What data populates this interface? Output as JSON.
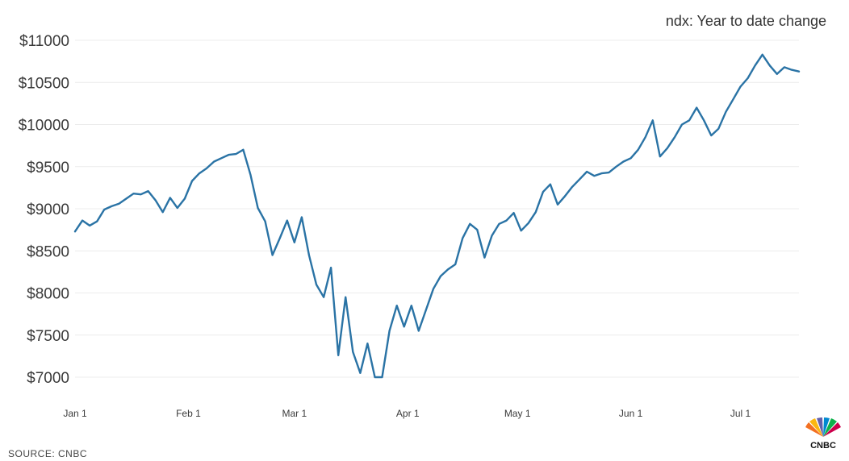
{
  "chart_data": {
    "type": "line",
    "title": "ndx: Year to date change",
    "source": "SOURCE: CNBC",
    "logo": "CNBC",
    "y_tick_labels": [
      "$11000",
      "$10500",
      "$10000",
      "$9500",
      "$9000",
      "$8500",
      "$8000",
      "$7500",
      "$7000"
    ],
    "y_ticks": [
      11000,
      10500,
      10000,
      9500,
      9000,
      8500,
      8000,
      7500,
      7000
    ],
    "x_tick_labels": [
      "Jan 1",
      "Feb 1",
      "Mar 1",
      "Apr 1",
      "May 1",
      "Jun 1",
      "Jul 1"
    ],
    "x_ticks": [
      "2020-01-01",
      "2020-02-01",
      "2020-03-01",
      "2020-04-01",
      "2020-05-01",
      "2020-06-01",
      "2020-07-01"
    ],
    "xlim": [
      "2020-01-01",
      "2020-07-17"
    ],
    "ylim": [
      6900,
      11100
    ],
    "grid": true,
    "line_color": "#2a73a5",
    "series": [
      {
        "x": [
          "2020-01-01",
          "2020-01-03",
          "2020-01-05",
          "2020-01-07",
          "2020-01-09",
          "2020-01-11",
          "2020-01-13",
          "2020-01-15",
          "2020-01-17",
          "2020-01-19",
          "2020-01-21",
          "2020-01-23",
          "2020-01-25",
          "2020-01-27",
          "2020-01-29",
          "2020-01-31",
          "2020-02-02",
          "2020-02-04",
          "2020-02-06",
          "2020-02-08",
          "2020-02-10",
          "2020-02-12",
          "2020-02-14",
          "2020-02-16",
          "2020-02-18",
          "2020-02-20",
          "2020-02-22",
          "2020-02-24",
          "2020-02-26",
          "2020-02-28",
          "2020-03-01",
          "2020-03-03",
          "2020-03-05",
          "2020-03-07",
          "2020-03-09",
          "2020-03-11",
          "2020-03-13",
          "2020-03-15",
          "2020-03-17",
          "2020-03-19",
          "2020-03-21",
          "2020-03-23",
          "2020-03-25",
          "2020-03-27",
          "2020-03-29",
          "2020-03-31",
          "2020-04-02",
          "2020-04-04",
          "2020-04-06",
          "2020-04-08",
          "2020-04-10",
          "2020-04-12",
          "2020-04-14",
          "2020-04-16",
          "2020-04-18",
          "2020-04-20",
          "2020-04-22",
          "2020-04-24",
          "2020-04-26",
          "2020-04-28",
          "2020-04-30",
          "2020-05-02",
          "2020-05-04",
          "2020-05-06",
          "2020-05-08",
          "2020-05-10",
          "2020-05-12",
          "2020-05-14",
          "2020-05-16",
          "2020-05-18",
          "2020-05-20",
          "2020-05-22",
          "2020-05-24",
          "2020-05-26",
          "2020-05-28",
          "2020-05-30",
          "2020-06-01",
          "2020-06-03",
          "2020-06-05",
          "2020-06-07",
          "2020-06-09",
          "2020-06-11",
          "2020-06-13",
          "2020-06-15",
          "2020-06-17",
          "2020-06-19",
          "2020-06-21",
          "2020-06-23",
          "2020-06-25",
          "2020-06-27",
          "2020-06-29",
          "2020-07-01",
          "2020-07-03",
          "2020-07-05",
          "2020-07-07",
          "2020-07-09",
          "2020-07-11",
          "2020-07-13",
          "2020-07-15",
          "2020-07-17"
        ],
        "values": [
          8730,
          8860,
          8800,
          8850,
          8990,
          9030,
          9060,
          9120,
          9180,
          9170,
          9210,
          9100,
          8960,
          9130,
          9010,
          9120,
          9330,
          9420,
          9480,
          9560,
          9600,
          9640,
          9650,
          9700,
          9400,
          9010,
          8850,
          8450,
          8650,
          8860,
          8600,
          8900,
          8450,
          8100,
          7950,
          8300,
          7260,
          7950,
          7300,
          7050,
          7400,
          7000,
          7000,
          7550,
          7850,
          7600,
          7850,
          7550,
          7800,
          8050,
          8200,
          8280,
          8340,
          8650,
          8820,
          8750,
          8420,
          8680,
          8820,
          8860,
          8950,
          8740,
          8830,
          8960,
          9200,
          9290,
          9050,
          9150,
          9260,
          9350,
          9440,
          9390,
          9420,
          9430,
          9500,
          9560,
          9600,
          9700,
          9850,
          10050,
          9620,
          9720,
          9850,
          10000,
          10050,
          10200,
          10050,
          9870,
          9950,
          10150,
          10300,
          10450,
          10550,
          10700,
          10830,
          10700,
          10600,
          10680,
          10650,
          10630
        ]
      }
    ]
  }
}
